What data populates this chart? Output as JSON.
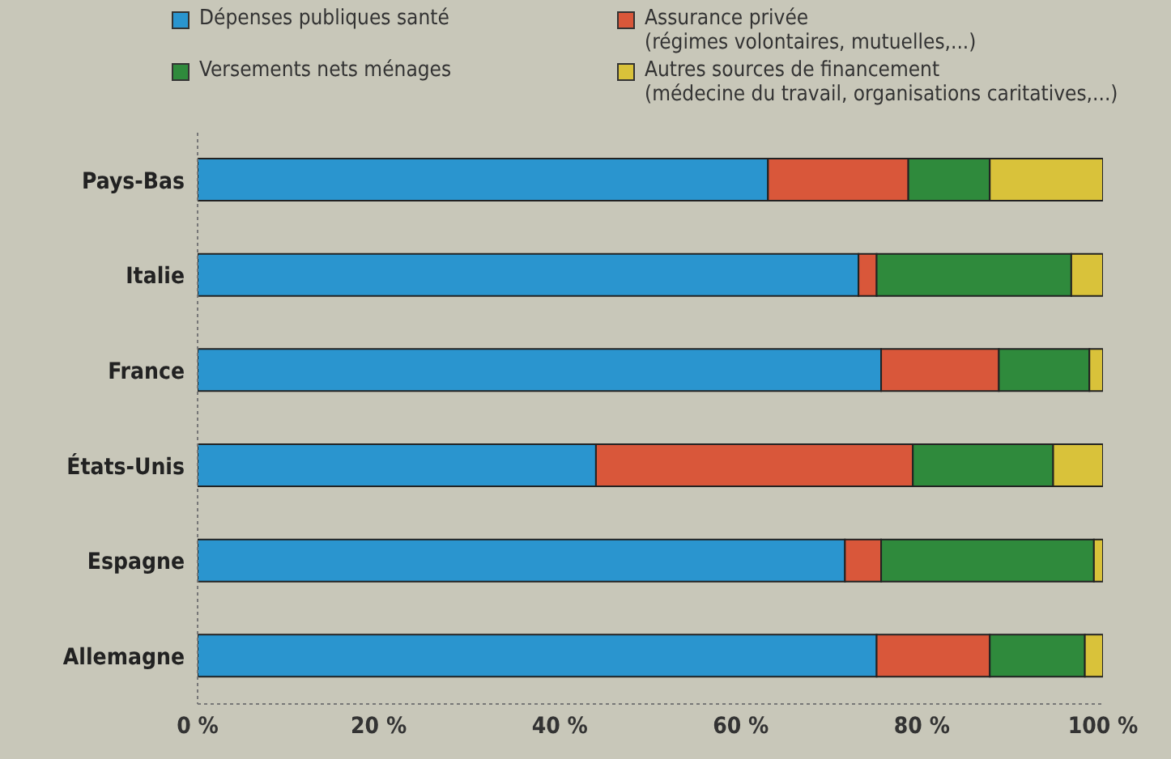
{
  "chart_data": {
    "type": "bar",
    "orientation": "horizontal",
    "stacked": true,
    "categories": [
      "Pays-Bas",
      "Italie",
      "France",
      "États-Unis",
      "Espagne",
      "Allemagne"
    ],
    "series": [
      {
        "name": "Dépenses publiques santé",
        "color": "#2a95cf",
        "values": [
          63,
          73,
          75.5,
          44,
          71.5,
          75
        ]
      },
      {
        "name": "Assurance privée\n(régimes volontaires, mutuelles,...)",
        "color": "#d9573a",
        "values": [
          15.5,
          2,
          13,
          35,
          4,
          12.5
        ]
      },
      {
        "name": "Versements nets ménages",
        "color": "#2f8a3c",
        "values": [
          9,
          21.5,
          10,
          15.5,
          23.5,
          10.5
        ]
      },
      {
        "name": "Autres sources de financement\n(médecine du travail, organisations caritatives,...)",
        "color": "#d9c23a",
        "values": [
          12.5,
          3.5,
          1.5,
          5.5,
          1,
          2
        ]
      }
    ],
    "xlim": [
      0,
      100
    ],
    "xticks": [
      {
        "value": 0,
        "label": "0 %"
      },
      {
        "value": 20,
        "label": "20 %"
      },
      {
        "value": 40,
        "label": "40 %"
      },
      {
        "value": 60,
        "label": "60 %"
      },
      {
        "value": 80,
        "label": "80 %"
      },
      {
        "value": 100,
        "label": "100 %"
      }
    ],
    "legend": "top",
    "grid": false
  }
}
